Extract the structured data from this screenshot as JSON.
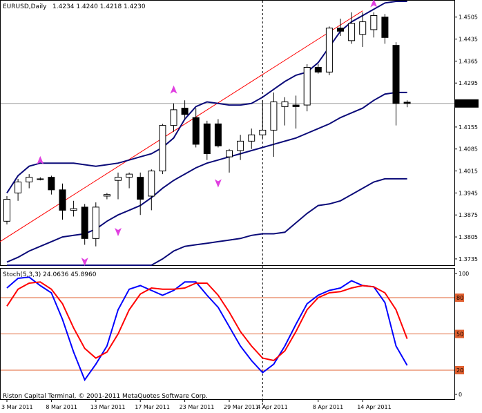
{
  "colors": {
    "background": "#ffffff",
    "candle_outline": "#000000",
    "bollinger": "#0a0a78",
    "channel": "#ff0000",
    "arrow": "#e040e0",
    "stoch_main": "#0000ff",
    "stoch_signal": "#ff0000",
    "stoch_levels": "#e06030",
    "price_marker_bg": "#000000",
    "price_marker_fg": "#ffffff"
  },
  "price_panel": {
    "symbol": "EURUSD,Daily",
    "ohlc": "1.4234 1.4240 1.4218 1.4230",
    "current_price_label": "1.4230",
    "current_price": 1.423
  },
  "stoch_panel": {
    "label": "Stoch(5,3,3) 24.0636 45.8960",
    "copyright": "Riston Capital Terminal, © 2001-2011 MetaQuotes Software Corp.",
    "levels": [
      {
        "value": 80,
        "label": "80"
      },
      {
        "value": 50,
        "label": "50"
      },
      {
        "value": 20,
        "label": "20"
      }
    ]
  },
  "chart_data": [
    {
      "type": "candlestick",
      "ylim": [
        1.3715,
        1.4555
      ],
      "y_ticks": [
        1.4505,
        1.4435,
        1.4365,
        1.4295,
        1.4225,
        1.4155,
        1.4085,
        1.4015,
        1.3945,
        1.3875,
        1.3805,
        1.3735
      ],
      "x_tick_labels": [
        "3 Mar 2011",
        "8 Mar 2011",
        "13 Mar 2011",
        "17 Mar 2011",
        "23 Mar 2011",
        "29 Mar 2011",
        "4 Apr 2011",
        "8 Apr 2011",
        "14 Apr 2011"
      ],
      "candles": [
        {
          "o": 1.3855,
          "h": 1.3935,
          "l": 1.3845,
          "c": 1.3925
        },
        {
          "o": 1.3945,
          "h": 1.399,
          "l": 1.392,
          "c": 1.398
        },
        {
          "o": 1.398,
          "h": 1.4005,
          "l": 1.396,
          "c": 1.3995
        },
        {
          "o": 1.399,
          "h": 1.3995,
          "l": 1.3985,
          "c": 1.3988
        },
        {
          "o": 1.3995,
          "h": 1.4,
          "l": 1.394,
          "c": 1.3955
        },
        {
          "o": 1.3955,
          "h": 1.3975,
          "l": 1.386,
          "c": 1.389
        },
        {
          "o": 1.389,
          "h": 1.392,
          "l": 1.387,
          "c": 1.3895
        },
        {
          "o": 1.39,
          "h": 1.391,
          "l": 1.378,
          "c": 1.38
        },
        {
          "o": 1.38,
          "h": 1.3915,
          "l": 1.3775,
          "c": 1.39
        },
        {
          "o": 1.3935,
          "h": 1.3945,
          "l": 1.3925,
          "c": 1.394
        },
        {
          "o": 1.3985,
          "h": 1.401,
          "l": 1.3925,
          "c": 1.3995
        },
        {
          "o": 1.3995,
          "h": 1.401,
          "l": 1.396,
          "c": 1.4005
        },
        {
          "o": 1.3995,
          "h": 1.401,
          "l": 1.3875,
          "c": 1.3925
        },
        {
          "o": 1.3935,
          "h": 1.402,
          "l": 1.389,
          "c": 1.4015
        },
        {
          "o": 1.4015,
          "h": 1.4165,
          "l": 1.4005,
          "c": 1.416
        },
        {
          "o": 1.416,
          "h": 1.423,
          "l": 1.414,
          "c": 1.421
        },
        {
          "o": 1.4215,
          "h": 1.424,
          "l": 1.418,
          "c": 1.4195
        },
        {
          "o": 1.4185,
          "h": 1.4215,
          "l": 1.409,
          "c": 1.41
        },
        {
          "o": 1.4165,
          "h": 1.4175,
          "l": 1.405,
          "c": 1.407
        },
        {
          "o": 1.4165,
          "h": 1.418,
          "l": 1.409,
          "c": 1.4095
        },
        {
          "o": 1.406,
          "h": 1.4085,
          "l": 1.401,
          "c": 1.408
        },
        {
          "o": 1.408,
          "h": 1.413,
          "l": 1.405,
          "c": 1.411
        },
        {
          "o": 1.411,
          "h": 1.415,
          "l": 1.4085,
          "c": 1.413
        },
        {
          "o": 1.413,
          "h": 1.424,
          "l": 1.412,
          "c": 1.4145
        },
        {
          "o": 1.4145,
          "h": 1.4265,
          "l": 1.406,
          "c": 1.4235
        },
        {
          "o": 1.422,
          "h": 1.425,
          "l": 1.416,
          "c": 1.4235
        },
        {
          "o": 1.4225,
          "h": 1.4255,
          "l": 1.415,
          "c": 1.422
        },
        {
          "o": 1.4225,
          "h": 1.4355,
          "l": 1.4205,
          "c": 1.4345
        },
        {
          "o": 1.4345,
          "h": 1.4355,
          "l": 1.4325,
          "c": 1.433
        },
        {
          "o": 1.433,
          "h": 1.4475,
          "l": 1.432,
          "c": 1.447
        },
        {
          "o": 1.447,
          "h": 1.45,
          "l": 1.4445,
          "c": 1.446
        },
        {
          "o": 1.443,
          "h": 1.452,
          "l": 1.442,
          "c": 1.4485
        },
        {
          "o": 1.445,
          "h": 1.452,
          "l": 1.441,
          "c": 1.449
        },
        {
          "o": 1.4465,
          "h": 1.452,
          "l": 1.444,
          "c": 1.451
        },
        {
          "o": 1.4505,
          "h": 1.4515,
          "l": 1.442,
          "c": 1.444
        },
        {
          "o": 1.4415,
          "h": 1.4425,
          "l": 1.416,
          "c": 1.423
        },
        {
          "o": 1.4234,
          "h": 1.424,
          "l": 1.4218,
          "c": 1.423
        }
      ],
      "bollinger_upper": [
        1.3945,
        1.4,
        1.403,
        1.404,
        1.404,
        1.404,
        1.404,
        1.4035,
        1.403,
        1.4035,
        1.404,
        1.405,
        1.406,
        1.407,
        1.409,
        1.412,
        1.418,
        1.422,
        1.4235,
        1.423,
        1.4225,
        1.4225,
        1.423,
        1.425,
        1.4275,
        1.43,
        1.432,
        1.433,
        1.436,
        1.441,
        1.446,
        1.449,
        1.451,
        1.453,
        1.455,
        1.4555,
        1.4555
      ],
      "bollinger_middle": [
        1.3725,
        1.374,
        1.376,
        1.3775,
        1.379,
        1.3805,
        1.381,
        1.3815,
        1.383,
        1.3855,
        1.3875,
        1.389,
        1.3905,
        1.393,
        1.396,
        1.3985,
        1.4005,
        1.4025,
        1.404,
        1.405,
        1.406,
        1.407,
        1.408,
        1.409,
        1.41,
        1.411,
        1.412,
        1.4135,
        1.415,
        1.4165,
        1.4185,
        1.42,
        1.4215,
        1.424,
        1.426,
        1.4265,
        1.4265
      ],
      "bollinger_lower": [
        1.348,
        1.349,
        1.35,
        1.351,
        1.353,
        1.355,
        1.356,
        1.358,
        1.361,
        1.364,
        1.366,
        1.368,
        1.37,
        1.3715,
        1.3735,
        1.376,
        1.3775,
        1.378,
        1.3785,
        1.379,
        1.3795,
        1.38,
        1.381,
        1.3815,
        1.3815,
        1.382,
        1.385,
        1.388,
        1.3905,
        1.391,
        1.392,
        1.394,
        1.396,
        1.398,
        1.399,
        1.399,
        1.399
      ],
      "channel_line": {
        "from": {
          "index": 0,
          "value": 1.379
        },
        "to": {
          "index": 32,
          "value": 1.4525
        }
      },
      "vertical_line_index": 23,
      "up_arrows": [
        {
          "index": 3,
          "value": 1.4045
        },
        {
          "index": 15,
          "value": 1.427
        },
        {
          "index": 33,
          "value": 1.4545
        }
      ],
      "down_arrows": [
        {
          "index": 10,
          "value": 1.3825
        },
        {
          "index": 7,
          "value": 1.373
        },
        {
          "index": 19,
          "value": 1.398
        }
      ]
    },
    {
      "type": "line",
      "ylim": [
        0,
        100
      ],
      "y_ticks": [
        {
          "value": 100,
          "label": "100"
        },
        {
          "value": 0,
          "label": "0"
        }
      ],
      "series": [
        {
          "values": [
            88,
            96,
            97,
            90,
            84,
            62,
            35,
            12,
            25,
            40,
            70,
            87,
            90,
            86,
            82,
            86,
            93,
            93,
            82,
            72,
            56,
            40,
            28,
            18,
            25,
            40,
            58,
            75,
            82,
            86,
            88,
            94,
            90,
            89,
            76,
            40,
            24
          ]
        },
        {
          "values": [
            73,
            87,
            92,
            93,
            87,
            75,
            55,
            38,
            30,
            35,
            50,
            70,
            83,
            88,
            87,
            87,
            88,
            92,
            92,
            82,
            68,
            52,
            40,
            30,
            28,
            36,
            52,
            70,
            80,
            84,
            85,
            88,
            90,
            89,
            84,
            70,
            46
          ]
        }
      ]
    }
  ]
}
